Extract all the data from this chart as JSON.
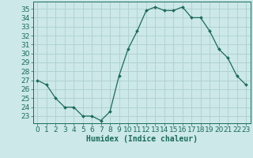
{
  "x": [
    0,
    1,
    2,
    3,
    4,
    5,
    6,
    7,
    8,
    9,
    10,
    11,
    12,
    13,
    14,
    15,
    16,
    17,
    18,
    19,
    20,
    21,
    22,
    23
  ],
  "y": [
    27,
    26.5,
    25,
    24,
    24,
    23,
    23,
    22.5,
    23.5,
    27.5,
    30.5,
    32.5,
    34.8,
    35.2,
    34.8,
    34.8,
    35.2,
    34,
    34,
    32.5,
    30.5,
    29.5,
    27.5,
    26.5
  ],
  "line_color": "#1a6b5a",
  "marker": "D",
  "marker_size": 2.0,
  "bg_color": "#cce8e8",
  "grid_color": "#aed0d0",
  "xlabel": "Humidex (Indice chaleur)",
  "xlim": [
    -0.5,
    23.5
  ],
  "ylim": [
    22.2,
    35.8
  ],
  "yticks": [
    23,
    24,
    25,
    26,
    27,
    28,
    29,
    30,
    31,
    32,
    33,
    34,
    35
  ],
  "xtick_labels": [
    "0",
    "1",
    "2",
    "3",
    "4",
    "5",
    "6",
    "7",
    "8",
    "9",
    "10",
    "11",
    "12",
    "13",
    "14",
    "15",
    "16",
    "17",
    "18",
    "19",
    "20",
    "21",
    "22",
    "23"
  ],
  "label_fontsize": 7,
  "tick_fontsize": 6.5
}
